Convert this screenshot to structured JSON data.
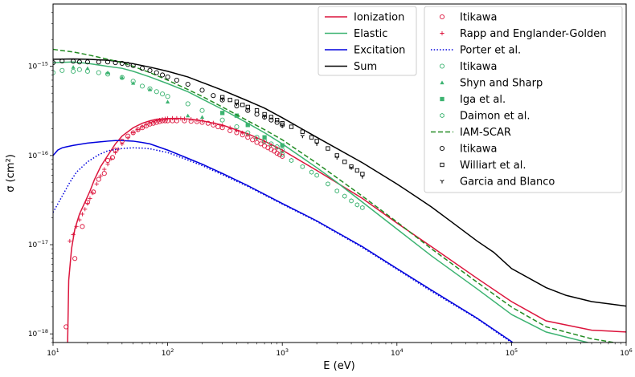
{
  "chart_data": {
    "type": "line",
    "xlabel": "E (eV)",
    "ylabel": "σ (cm²)",
    "xscale": "log",
    "yscale": "log",
    "xlim": [
      10,
      1000000
    ],
    "ylim": [
      8e-19,
      5e-15
    ],
    "grid": false,
    "x_ticks": [
      {
        "base": "10",
        "exp": "1",
        "value": 10
      },
      {
        "base": "10",
        "exp": "2",
        "value": 100
      },
      {
        "base": "10",
        "exp": "3",
        "value": 1000
      },
      {
        "base": "10",
        "exp": "4",
        "value": 10000
      },
      {
        "base": "10",
        "exp": "5",
        "value": 100000
      },
      {
        "base": "10",
        "exp": "6",
        "value": 1000000
      }
    ],
    "y_ticks": [
      {
        "base": "10",
        "exp": "−18",
        "value": 1e-18
      },
      {
        "base": "10",
        "exp": "−17",
        "value": 1e-17
      },
      {
        "base": "10",
        "exp": "−16",
        "value": 1e-16
      },
      {
        "base": "10",
        "exp": "−15",
        "value": 1e-15
      }
    ],
    "legends": [
      {
        "placement": "top-center",
        "entries": [
          {
            "label": "Ionization",
            "series": 0
          },
          {
            "label": "Elastic",
            "series": 1
          },
          {
            "label": "Excitation",
            "series": 2
          },
          {
            "label": "Sum",
            "series": 3
          }
        ]
      },
      {
        "placement": "top-right",
        "entries": [
          {
            "label": "Itikawa",
            "series": 4
          },
          {
            "label": "Rapp and Englander-Golden",
            "series": 5
          },
          {
            "label": "Porter et al.",
            "series": 6
          },
          {
            "label": "Itikawa",
            "series": 7
          },
          {
            "label": "Shyn and Sharp",
            "series": 8
          },
          {
            "label": "Iga et al.",
            "series": 9
          },
          {
            "label": "Daimon et al.",
            "series": 10
          },
          {
            "label": "IAM-SCAR",
            "series": 11
          },
          {
            "label": "Itikawa",
            "series": 12
          },
          {
            "label": "Williart et al.",
            "series": 13
          },
          {
            "label": "Garcia and Blanco",
            "series": 14
          }
        ]
      }
    ],
    "series": [
      {
        "name": "Ionization",
        "kind": "line",
        "color": "#dc143c",
        "dash": "solid",
        "x": [
          13.4,
          13.7,
          14.5,
          15.5,
          17,
          19,
          21,
          23,
          26,
          30,
          35,
          40,
          50,
          60,
          70,
          80,
          100,
          130,
          160,
          200,
          300,
          500,
          700,
          1000,
          2000,
          5000,
          10000,
          20000,
          50000,
          100000,
          200000,
          500000,
          1000000
        ],
        "y": [
          8e-19,
          4e-18,
          9e-18,
          1.5e-17,
          2.2e-17,
          3e-17,
          4e-17,
          5.4e-17,
          7.5e-17,
          1e-16,
          1.35e-16,
          1.65e-16,
          2.05e-16,
          2.3e-16,
          2.45e-16,
          2.55e-16,
          2.6e-16,
          2.6e-16,
          2.55e-16,
          2.45e-16,
          2.2e-16,
          1.75e-16,
          1.45e-16,
          1.15e-16,
          6.8e-17,
          3.3e-17,
          1.75e-17,
          9.5e-18,
          4.2e-18,
          2.3e-18,
          1.4e-18,
          1.1e-18,
          1.05e-18
        ]
      },
      {
        "name": "Elastic",
        "kind": "line",
        "color": "#3cb371",
        "dash": "solid",
        "x": [
          10,
          15,
          20,
          30,
          40,
          50,
          70,
          100,
          150,
          200,
          300,
          500,
          700,
          1000,
          2000,
          3000,
          5000,
          10000,
          20000,
          50000,
          100000,
          200000,
          500000,
          800000
        ],
        "y": [
          1.1e-15,
          1.12e-15,
          1.08e-15,
          1e-15,
          9.5e-16,
          8.8e-16,
          7.6e-16,
          6.4e-16,
          5.2e-16,
          4.3e-16,
          3.3e-16,
          2.3e-16,
          1.8e-16,
          1.35e-16,
          7.3e-17,
          5e-17,
          3e-17,
          1.5e-17,
          7.5e-18,
          3.2e-18,
          1.65e-18,
          1.05e-18,
          7.8e-19,
          7.2e-19
        ]
      },
      {
        "name": "Excitation",
        "kind": "line",
        "color": "#0000dd",
        "dash": "solid",
        "x": [
          10,
          11,
          12,
          13,
          15,
          20,
          25,
          30,
          35,
          40,
          50,
          60,
          70,
          100,
          150,
          200,
          300,
          500,
          1000,
          2000,
          5000,
          10000,
          20000,
          50000,
          100000,
          200000
        ],
        "y": [
          1e-16,
          1.15e-16,
          1.22e-16,
          1.25e-16,
          1.3e-16,
          1.38e-16,
          1.42e-16,
          1.45e-16,
          1.47e-16,
          1.47e-16,
          1.45e-16,
          1.4e-16,
          1.35e-16,
          1.15e-16,
          9.3e-17,
          8e-17,
          6.3e-17,
          4.6e-17,
          2.9e-17,
          1.85e-17,
          9.5e-18,
          5.4e-18,
          3.1e-18,
          1.5e-18,
          8.2e-19,
          4e-19
        ]
      },
      {
        "name": "Sum",
        "kind": "line",
        "color": "#000000",
        "dash": "solid",
        "x": [
          10,
          15,
          20,
          30,
          40,
          50,
          70,
          100,
          150,
          200,
          300,
          500,
          700,
          1000,
          2000,
          5000,
          10000,
          15000,
          20000,
          30000,
          50000,
          70000,
          100000,
          200000,
          300000,
          500000,
          1000000
        ],
        "y": [
          1.2e-15,
          1.21e-15,
          1.2e-15,
          1.17e-15,
          1.12e-15,
          1.07e-15,
          9.8e-16,
          8.8e-16,
          7.6e-16,
          6.6e-16,
          5.4e-16,
          4.1e-16,
          3.4e-16,
          2.65e-16,
          1.6e-16,
          8.3e-17,
          4.8e-17,
          3.4e-17,
          2.65e-17,
          1.8e-17,
          1.1e-17,
          8.2e-18,
          5.4e-18,
          3.3e-18,
          2.7e-18,
          2.3e-18,
          2.05e-18
        ]
      },
      {
        "name": "Itikawa",
        "kind": "scatter",
        "color": "#dc143c",
        "marker": "circle",
        "x": [
          13,
          15.5,
          18,
          20,
          22.5,
          25,
          28,
          30,
          33,
          35,
          40,
          45,
          50,
          55,
          60,
          65,
          70,
          75,
          80,
          85,
          90,
          95,
          100,
          110,
          120,
          140,
          160,
          180,
          200,
          225,
          250,
          275,
          300,
          350,
          400,
          450,
          500,
          550,
          600,
          650,
          700,
          750,
          800,
          850,
          900,
          950,
          1000
        ],
        "y": [
          1.2e-18,
          7e-18,
          1.6e-17,
          3e-17,
          3.9e-17,
          5.4e-17,
          6.3e-17,
          8.8e-17,
          9.5e-17,
          1.15e-16,
          1.45e-16,
          1.65e-16,
          1.8e-16,
          1.95e-16,
          2.05e-16,
          2.15e-16,
          2.25e-16,
          2.3e-16,
          2.35e-16,
          2.4e-16,
          2.45e-16,
          2.45e-16,
          2.45e-16,
          2.45e-16,
          2.45e-16,
          2.45e-16,
          2.42e-16,
          2.4e-16,
          2.35e-16,
          2.3e-16,
          2.2e-16,
          2.1e-16,
          2.05e-16,
          1.9e-16,
          1.8e-16,
          1.7e-16,
          1.6e-16,
          1.5e-16,
          1.4e-16,
          1.35e-16,
          1.28e-16,
          1.22e-16,
          1.17e-16,
          1.12e-16,
          1.06e-16,
          1.02e-16,
          9.8e-17
        ]
      },
      {
        "name": "Rapp and Englander-Golden",
        "kind": "scatter",
        "color": "#dc143c",
        "marker": "plus",
        "x": [
          14,
          15,
          16,
          17,
          18,
          19,
          20,
          21,
          22,
          24,
          26,
          28,
          30,
          32,
          35,
          37,
          40,
          45,
          50,
          55,
          60,
          65,
          70,
          75,
          80,
          85,
          90,
          95,
          100,
          110,
          120,
          130,
          140,
          160,
          180,
          200,
          250,
          300,
          350,
          400,
          450,
          500,
          600,
          700,
          800,
          900,
          1000
        ],
        "y": [
          1.1e-17,
          1.3e-17,
          1.6e-17,
          1.9e-17,
          2.2e-17,
          2.5e-17,
          2.9e-17,
          3.3e-17,
          3.8e-17,
          4.8e-17,
          5.9e-17,
          7e-17,
          8e-17,
          9.2e-17,
          1.08e-16,
          1.18e-16,
          1.35e-16,
          1.58e-16,
          1.8e-16,
          1.95e-16,
          2.1e-16,
          2.2e-16,
          2.3e-16,
          2.38e-16,
          2.45e-16,
          2.5e-16,
          2.55e-16,
          2.58e-16,
          2.6e-16,
          2.62e-16,
          2.62e-16,
          2.6e-16,
          2.58e-16,
          2.55e-16,
          2.5e-16,
          2.45e-16,
          2.32e-16,
          2.18e-16,
          2.05e-16,
          1.92e-16,
          1.8e-16,
          1.7e-16,
          1.55e-16,
          1.42e-16,
          1.3e-16,
          1.2e-16,
          1.12e-16
        ]
      },
      {
        "name": "Porter et al.",
        "kind": "line",
        "color": "#0000dd",
        "dash": "dotted",
        "x": [
          10,
          12,
          14,
          16,
          20,
          25,
          30,
          40,
          50,
          60,
          70,
          100,
          150,
          200,
          300,
          500,
          1000,
          2000,
          5000,
          10000,
          20000,
          50000,
          100000,
          200000
        ],
        "y": [
          2.3e-17,
          3.5e-17,
          5e-17,
          6.5e-17,
          8.5e-17,
          1.02e-16,
          1.13e-16,
          1.2e-16,
          1.22e-16,
          1.21e-16,
          1.19e-16,
          1.08e-16,
          8.9e-17,
          7.7e-17,
          6.1e-17,
          4.5e-17,
          2.85e-17,
          1.82e-17,
          9.3e-18,
          5.3e-18,
          3e-18,
          1.48e-18,
          8e-19,
          4e-19
        ]
      },
      {
        "name": "Itikawa",
        "kind": "scatter",
        "color": "#3cb371",
        "marker": "circle",
        "x": [
          10,
          12,
          15,
          17,
          20,
          25,
          30,
          40,
          50,
          60,
          70,
          80,
          90,
          100,
          150,
          200,
          300,
          400,
          500,
          600,
          700,
          800,
          900,
          1000
        ],
        "y": [
          8.5e-16,
          9e-16,
          8.8e-16,
          9.2e-16,
          8.8e-16,
          8.5e-16,
          8.2e-16,
          7.5e-16,
          6.8e-16,
          6e-16,
          5.6e-16,
          5.2e-16,
          4.9e-16,
          4.6e-16,
          3.8e-16,
          3.2e-16,
          2.5e-16,
          2.1e-16,
          1.8e-16,
          1.6e-16,
          1.45e-16,
          1.35e-16,
          1.25e-16,
          1.15e-16
        ]
      },
      {
        "name": "Shyn and Sharp",
        "kind": "scatter",
        "color": "#3cb371",
        "marker": "triangle",
        "x": [
          15,
          20,
          30,
          40,
          50,
          70,
          100,
          150,
          200
        ],
        "y": [
          9.8e-16,
          9.5e-16,
          8.5e-16,
          7.5e-16,
          6.5e-16,
          5.5e-16,
          4e-16,
          2.8e-16,
          2.7e-16
        ]
      },
      {
        "name": "Iga et al.",
        "kind": "scatter",
        "color": "#3cb371",
        "marker": "square",
        "x": [
          300,
          400,
          500,
          700,
          1000
        ],
        "y": [
          3e-16,
          2.8e-16,
          2.2e-16,
          1.6e-16,
          1.3e-16
        ]
      },
      {
        "name": "Daimon et al.",
        "kind": "scatter",
        "color": "#3cb371",
        "marker": "hexagon",
        "x": [
          1000,
          1200,
          1500,
          1800,
          2000,
          2500,
          3000,
          3500,
          4000,
          4500,
          5000
        ],
        "y": [
          1.03e-16,
          8.8e-17,
          7.5e-17,
          6.5e-17,
          6e-17,
          4.8e-17,
          4e-17,
          3.5e-17,
          3.1e-17,
          2.8e-17,
          2.6e-17
        ]
      },
      {
        "name": "IAM-SCAR",
        "kind": "line",
        "color": "#228b22",
        "dash": "dashed",
        "x": [
          10,
          15,
          20,
          30,
          40,
          50,
          70,
          100,
          150,
          200,
          300,
          500,
          700,
          1000,
          2000,
          5000,
          10000,
          20000,
          50000,
          100000,
          200000,
          500000,
          1000000
        ],
        "y": [
          1.55e-15,
          1.45e-15,
          1.35e-15,
          1.2e-15,
          1.1e-15,
          1e-15,
          8.5e-16,
          7e-16,
          5.5e-16,
          4.6e-16,
          3.5e-16,
          2.45e-16,
          1.95e-16,
          1.5e-16,
          8.2e-17,
          3.5e-17,
          1.8e-17,
          9e-18,
          3.8e-18,
          2e-18,
          1.2e-18,
          8.8e-19,
          7.6e-19
        ]
      },
      {
        "name": "Itikawa",
        "kind": "scatter",
        "color": "#000000",
        "marker": "circle",
        "x": [
          10,
          12,
          15,
          17,
          20,
          25,
          30,
          35,
          40,
          45,
          50,
          60,
          70,
          80,
          90,
          100,
          120,
          150,
          200,
          250,
          300,
          400,
          500,
          600,
          700,
          800,
          900,
          1000
        ],
        "y": [
          1.1e-15,
          1.15e-15,
          1.14e-15,
          1.12e-15,
          1.12e-15,
          1.12e-15,
          1.12e-15,
          1.1e-15,
          1.08e-15,
          1.05e-15,
          1.02e-15,
          9.5e-16,
          9e-16,
          8.5e-16,
          8e-16,
          7.6e-16,
          7e-16,
          6.3e-16,
          5.4e-16,
          4.7e-16,
          4.2e-16,
          3.6e-16,
          3.2e-16,
          2.9e-16,
          2.7e-16,
          2.5e-16,
          2.35e-16,
          2.2e-16
        ]
      },
      {
        "name": "Williart et al.",
        "kind": "scatter",
        "color": "#000000",
        "marker": "square",
        "x": [
          300,
          350,
          400,
          450,
          500,
          600,
          700,
          800,
          900,
          1000,
          1200,
          1500,
          1800,
          2000,
          2500,
          3000,
          3500,
          4000,
          4500,
          5000
        ],
        "y": [
          4.5e-16,
          4.2e-16,
          4e-16,
          3.7e-16,
          3.5e-16,
          3.2e-16,
          2.9e-16,
          2.7e-16,
          2.5e-16,
          2.3e-16,
          2.1e-16,
          1.85e-16,
          1.6e-16,
          1.45e-16,
          1.2e-16,
          1e-16,
          8.5e-17,
          7.5e-17,
          6.8e-17,
          6.2e-17
        ]
      },
      {
        "name": "Garcia and Blanco",
        "kind": "scatter",
        "color": "#000000",
        "marker": "tri-down",
        "x": [
          300,
          400,
          500,
          700,
          1000,
          1500,
          2000,
          3000,
          4000,
          5000
        ],
        "y": [
          4.3e-16,
          3.8e-16,
          3.3e-16,
          2.7e-16,
          2.15e-16,
          1.65e-16,
          1.35e-16,
          9.5e-17,
          7.3e-17,
          5.8e-17
        ]
      }
    ]
  }
}
